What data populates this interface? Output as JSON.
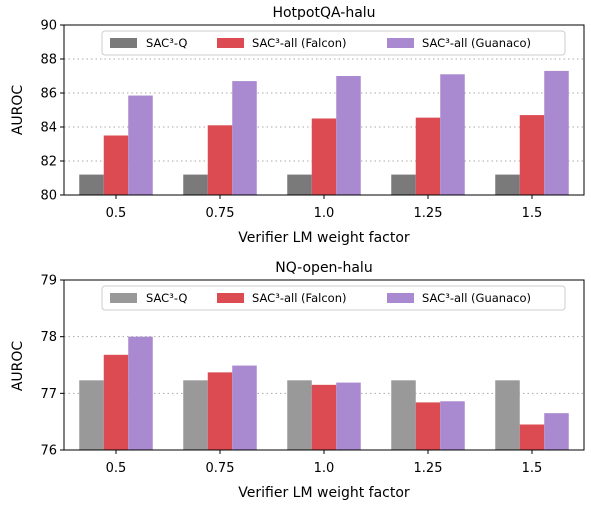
{
  "charts": [
    {
      "title": "HotpotQA-halu",
      "xlabel": "Verifier LM weight factor",
      "ylabel": "AUROC",
      "legend": [
        {
          "name": "SAC³-Q",
          "color": "#7a7a7a"
        },
        {
          "name": "SAC³-all (Falcon)",
          "color": "#dc4b51"
        },
        {
          "name": "SAC³-all (Guanaco)",
          "color": "#a989d0"
        }
      ]
    },
    {
      "title": "NQ-open-halu",
      "xlabel": "Verifier LM weight factor",
      "ylabel": "AUROC",
      "legend": [
        {
          "name": "SAC³-Q",
          "color": "#999999"
        },
        {
          "name": "SAC³-all (Falcon)",
          "color": "#dc4b51"
        },
        {
          "name": "SAC³-all (Guanaco)",
          "color": "#a989d0"
        }
      ]
    }
  ],
  "chart_data": [
    {
      "type": "bar",
      "title": "HotpotQA-halu",
      "xlabel": "Verifier LM weight factor",
      "ylabel": "AUROC",
      "categories": [
        "0.5",
        "0.75",
        "1.0",
        "1.25",
        "1.5"
      ],
      "ylim": [
        80,
        90
      ],
      "yticks": [
        80,
        82,
        84,
        86,
        88,
        90
      ],
      "grid": "horizontal dotted",
      "legend_position": "top",
      "series": [
        {
          "name": "SAC³-Q",
          "color": "#7a7a7a",
          "values": [
            81.2,
            81.2,
            81.2,
            81.2,
            81.2
          ]
        },
        {
          "name": "SAC³-all (Falcon)",
          "color": "#dc4b51",
          "values": [
            83.5,
            84.1,
            84.5,
            84.55,
            84.7
          ]
        },
        {
          "name": "SAC³-all (Guanaco)",
          "color": "#a989d0",
          "values": [
            85.85,
            86.7,
            87.0,
            87.1,
            87.3
          ]
        }
      ]
    },
    {
      "type": "bar",
      "title": "NQ-open-halu",
      "xlabel": "Verifier LM weight factor",
      "ylabel": "AUROC",
      "categories": [
        "0.5",
        "0.75",
        "1.0",
        "1.25",
        "1.5"
      ],
      "ylim": [
        76,
        79
      ],
      "yticks": [
        76,
        77,
        78,
        79
      ],
      "grid": "horizontal dotted",
      "legend_position": "top",
      "series": [
        {
          "name": "SAC³-Q",
          "color": "#999999",
          "values": [
            77.23,
            77.23,
            77.23,
            77.23,
            77.23
          ]
        },
        {
          "name": "SAC³-all (Falcon)",
          "color": "#dc4b51",
          "values": [
            77.68,
            77.37,
            77.15,
            76.84,
            76.45
          ]
        },
        {
          "name": "SAC³-all (Guanaco)",
          "color": "#a989d0",
          "values": [
            78.0,
            77.49,
            77.19,
            76.86,
            76.65
          ]
        }
      ]
    }
  ]
}
